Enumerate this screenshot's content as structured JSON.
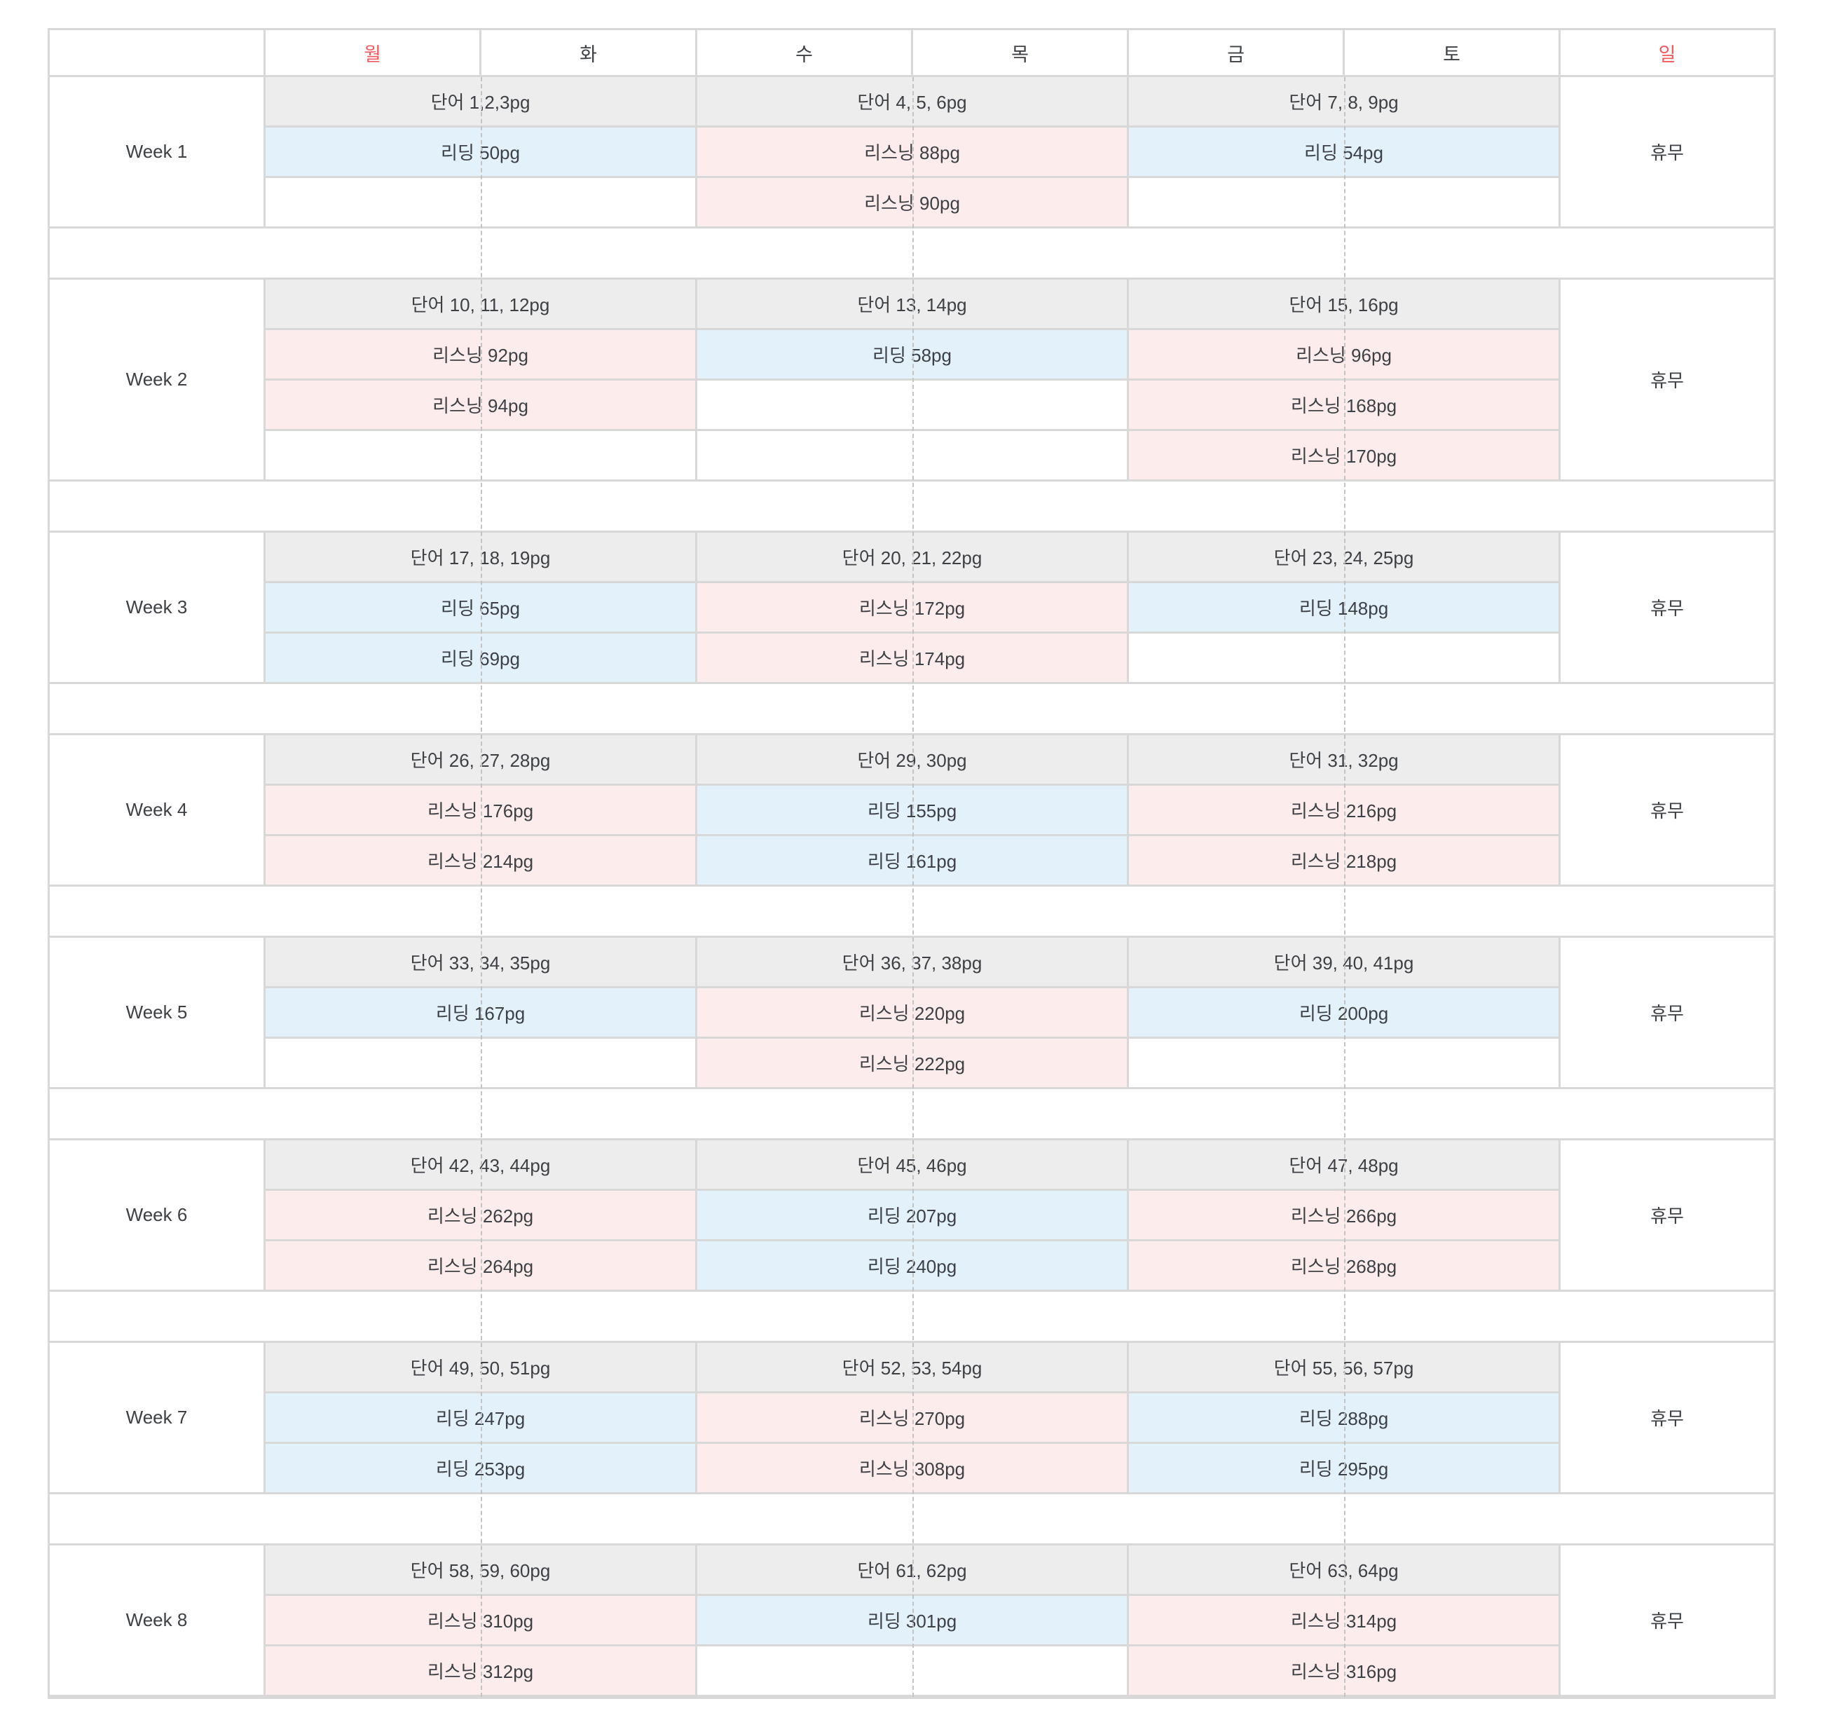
{
  "table": {
    "corner_label": "",
    "rest_label": "휴무",
    "accent_color": "#f4585c",
    "cell_colors": {
      "vocab": "#ededed",
      "reading": "#e3f1fb",
      "listening": "#fdecec"
    },
    "days": [
      {
        "label": "월",
        "accent": true
      },
      {
        "label": "화",
        "accent": false
      },
      {
        "label": "수",
        "accent": false
      },
      {
        "label": "목",
        "accent": false
      },
      {
        "label": "금",
        "accent": false
      },
      {
        "label": "토",
        "accent": false
      },
      {
        "label": "일",
        "accent": true
      }
    ],
    "weeks": [
      {
        "label": "Week 1",
        "rows": [
          [
            {
              "type": "vocab",
              "text": "단어 1,2,3pg"
            },
            {
              "type": "vocab",
              "text": "단어 4, 5, 6pg"
            },
            {
              "type": "vocab",
              "text": "단어 7, 8, 9pg"
            }
          ],
          [
            {
              "type": "reading",
              "text": "리딩 50pg"
            },
            {
              "type": "listening",
              "text": "리스닝 88pg"
            },
            {
              "type": "reading",
              "text": "리딩 54pg"
            }
          ],
          [
            {
              "type": "empty",
              "text": ""
            },
            {
              "type": "listening",
              "text": "리스닝 90pg"
            },
            {
              "type": "empty",
              "text": ""
            }
          ]
        ]
      },
      {
        "label": "Week 2",
        "rows": [
          [
            {
              "type": "vocab",
              "text": "단어 10, 11, 12pg"
            },
            {
              "type": "vocab",
              "text": "단어 13, 14pg"
            },
            {
              "type": "vocab",
              "text": "단어 15, 16pg"
            }
          ],
          [
            {
              "type": "listening",
              "text": "리스닝 92pg"
            },
            {
              "type": "reading",
              "text": "리딩 58pg"
            },
            {
              "type": "listening",
              "text": "리스닝 96pg"
            }
          ],
          [
            {
              "type": "listening",
              "text": "리스닝 94pg"
            },
            {
              "type": "empty",
              "text": ""
            },
            {
              "type": "listening",
              "text": "리스닝 168pg"
            }
          ],
          [
            {
              "type": "empty",
              "text": ""
            },
            {
              "type": "empty",
              "text": ""
            },
            {
              "type": "listening",
              "text": "리스닝 170pg"
            }
          ]
        ]
      },
      {
        "label": "Week 3",
        "rows": [
          [
            {
              "type": "vocab",
              "text": "단어 17, 18, 19pg"
            },
            {
              "type": "vocab",
              "text": "단어 20, 21, 22pg"
            },
            {
              "type": "vocab",
              "text": "단어 23, 24, 25pg"
            }
          ],
          [
            {
              "type": "reading",
              "text": "리딩 65pg"
            },
            {
              "type": "listening",
              "text": "리스닝 172pg"
            },
            {
              "type": "reading",
              "text": "리딩 148pg"
            }
          ],
          [
            {
              "type": "reading",
              "text": "리딩 69pg"
            },
            {
              "type": "listening",
              "text": "리스닝 174pg"
            },
            {
              "type": "empty",
              "text": ""
            }
          ]
        ]
      },
      {
        "label": "Week 4",
        "rows": [
          [
            {
              "type": "vocab",
              "text": "단어 26, 27, 28pg"
            },
            {
              "type": "vocab",
              "text": "단어 29, 30pg"
            },
            {
              "type": "vocab",
              "text": "단어 31, 32pg"
            }
          ],
          [
            {
              "type": "listening",
              "text": "리스닝 176pg"
            },
            {
              "type": "reading",
              "text": "리딩 155pg"
            },
            {
              "type": "listening",
              "text": "리스닝 216pg"
            }
          ],
          [
            {
              "type": "listening",
              "text": "리스닝 214pg"
            },
            {
              "type": "reading",
              "text": "리딩 161pg"
            },
            {
              "type": "listening",
              "text": "리스닝 218pg"
            }
          ]
        ]
      },
      {
        "label": "Week 5",
        "rows": [
          [
            {
              "type": "vocab",
              "text": "단어 33, 34, 35pg"
            },
            {
              "type": "vocab",
              "text": "단어 36, 37, 38pg"
            },
            {
              "type": "vocab",
              "text": "단어 39, 40, 41pg"
            }
          ],
          [
            {
              "type": "reading",
              "text": "리딩 167pg"
            },
            {
              "type": "listening",
              "text": "리스닝 220pg"
            },
            {
              "type": "reading",
              "text": "리딩 200pg"
            }
          ],
          [
            {
              "type": "empty",
              "text": ""
            },
            {
              "type": "listening",
              "text": "리스닝 222pg"
            },
            {
              "type": "empty",
              "text": ""
            }
          ]
        ]
      },
      {
        "label": "Week 6",
        "rows": [
          [
            {
              "type": "vocab",
              "text": "단어 42, 43, 44pg"
            },
            {
              "type": "vocab",
              "text": "단어 45, 46pg"
            },
            {
              "type": "vocab",
              "text": "단어 47, 48pg"
            }
          ],
          [
            {
              "type": "listening",
              "text": "리스닝 262pg"
            },
            {
              "type": "reading",
              "text": "리딩 207pg"
            },
            {
              "type": "listening",
              "text": "리스닝 266pg"
            }
          ],
          [
            {
              "type": "listening",
              "text": "리스닝 264pg"
            },
            {
              "type": "reading",
              "text": "리딩 240pg"
            },
            {
              "type": "listening",
              "text": "리스닝 268pg"
            }
          ]
        ]
      },
      {
        "label": "Week 7",
        "rows": [
          [
            {
              "type": "vocab",
              "text": "단어 49, 50, 51pg"
            },
            {
              "type": "vocab",
              "text": "단어 52, 53, 54pg"
            },
            {
              "type": "vocab",
              "text": "단어 55, 56, 57pg"
            }
          ],
          [
            {
              "type": "reading",
              "text": "리딩 247pg"
            },
            {
              "type": "listening",
              "text": "리스닝 270pg"
            },
            {
              "type": "reading",
              "text": "리딩 288pg"
            }
          ],
          [
            {
              "type": "reading",
              "text": "리딩 253pg"
            },
            {
              "type": "listening",
              "text": "리스닝 308pg"
            },
            {
              "type": "reading",
              "text": "리딩 295pg"
            }
          ]
        ]
      },
      {
        "label": "Week 8",
        "rows": [
          [
            {
              "type": "vocab",
              "text": "단어 58, 59, 60pg"
            },
            {
              "type": "vocab",
              "text": "단어 61, 62pg"
            },
            {
              "type": "vocab",
              "text": "단어 63, 64pg"
            }
          ],
          [
            {
              "type": "listening",
              "text": "리스닝 310pg"
            },
            {
              "type": "reading",
              "text": "리딩 301pg"
            },
            {
              "type": "listening",
              "text": "리스닝 314pg"
            }
          ],
          [
            {
              "type": "listening",
              "text": "리스닝 312pg"
            },
            {
              "type": "empty",
              "text": ""
            },
            {
              "type": "listening",
              "text": "리스닝 316pg"
            }
          ]
        ]
      }
    ]
  }
}
